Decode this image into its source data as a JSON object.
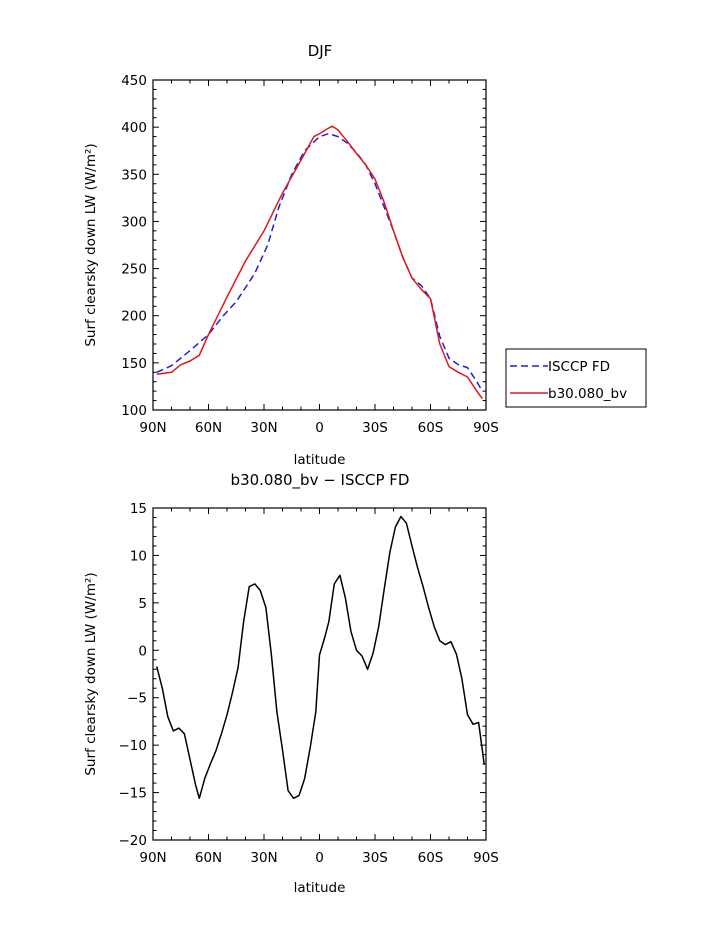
{
  "chart_data": [
    {
      "type": "line",
      "title": "DJF",
      "xlabel": "latitude",
      "ylabel": "Surf clearsky down LW (W/m²)",
      "xlim": [
        -90,
        90
      ],
      "ylim": [
        100,
        450
      ],
      "xticks": [
        -90,
        -60,
        -30,
        0,
        30,
        60,
        90
      ],
      "xtick_labels": [
        "90N",
        "60N",
        "30N",
        "0",
        "30S",
        "60S",
        "90S"
      ],
      "yticks": [
        100,
        150,
        200,
        250,
        300,
        350,
        400,
        450
      ],
      "ytick_labels": [
        "100",
        "150",
        "200",
        "250",
        "300",
        "350",
        "400",
        "450"
      ],
      "legend_position": "outside-right",
      "series": [
        {
          "name": "ISCCP FD",
          "color": "#1f1fd6",
          "style": "dashed",
          "x": [
            -88,
            -80,
            -70,
            -60,
            -52,
            -45,
            -35,
            -28,
            -22,
            -15,
            -8,
            0,
            5,
            10,
            15,
            20,
            25,
            30,
            35,
            40,
            45,
            50,
            55,
            60,
            65,
            70,
            75,
            80,
            85,
            88
          ],
          "y": [
            140,
            147,
            163,
            180,
            200,
            215,
            245,
            275,
            315,
            350,
            375,
            390,
            393,
            390,
            383,
            373,
            360,
            340,
            315,
            290,
            262,
            240,
            232,
            218,
            178,
            155,
            148,
            145,
            130,
            120
          ]
        },
        {
          "name": "b30.080_bv",
          "color": "#e0181b",
          "style": "solid",
          "x": [
            -88,
            -80,
            -75,
            -70,
            -65,
            -60,
            -50,
            -40,
            -30,
            -20,
            -10,
            -3,
            0,
            4,
            7,
            10,
            15,
            20,
            25,
            30,
            35,
            40,
            45,
            50,
            55,
            60,
            65,
            70,
            75,
            80,
            85,
            88
          ],
          "y": [
            138,
            140,
            148,
            152,
            158,
            180,
            220,
            258,
            290,
            330,
            365,
            390,
            393,
            398,
            401,
            397,
            385,
            372,
            360,
            345,
            320,
            290,
            262,
            240,
            228,
            218,
            170,
            146,
            140,
            135,
            120,
            112
          ]
        }
      ]
    },
    {
      "type": "line",
      "title": "b30.080_bv − ISCCP FD",
      "xlabel": "latitude",
      "ylabel": "Surf clearsky down LW (W/m²)",
      "xlim": [
        -90,
        90
      ],
      "ylim": [
        -20,
        15
      ],
      "xticks": [
        -90,
        -60,
        -30,
        0,
        30,
        60,
        90
      ],
      "xtick_labels": [
        "90N",
        "60N",
        "30N",
        "0",
        "30S",
        "60S",
        "90S"
      ],
      "yticks": [
        -20,
        -15,
        -10,
        -5,
        0,
        5,
        10,
        15
      ],
      "ytick_labels": [
        "−20",
        "−15",
        "−10",
        "−5",
        "0",
        "5",
        "10",
        "15"
      ],
      "series": [
        {
          "color": "#000000",
          "style": "solid",
          "x": [
            -88,
            -85,
            -82,
            -79,
            -76,
            -73,
            -70,
            -67,
            -65,
            -62,
            -59,
            -56,
            -53,
            -50,
            -47,
            -44,
            -41,
            -38,
            -35,
            -32,
            -29,
            -26,
            -23,
            -20,
            -17,
            -14,
            -11,
            -8,
            -5,
            -2,
            0,
            3,
            5,
            8,
            11,
            14,
            17,
            20,
            23,
            26,
            29,
            32,
            35,
            38,
            41,
            44,
            47,
            50,
            53,
            56,
            59,
            62,
            65,
            68,
            71,
            74,
            77,
            80,
            83,
            86,
            89
          ],
          "y": [
            -1.7,
            -4.0,
            -7.0,
            -8.5,
            -8.2,
            -8.8,
            -11.5,
            -14.2,
            -15.6,
            -13.5,
            -12.0,
            -10.6,
            -8.8,
            -6.8,
            -4.4,
            -1.8,
            3.0,
            6.7,
            7.0,
            6.3,
            4.5,
            -0.5,
            -6.5,
            -10.5,
            -14.8,
            -15.6,
            -15.3,
            -13.5,
            -10.2,
            -6.5,
            -0.5,
            1.5,
            3.0,
            7.0,
            7.9,
            5.5,
            2.0,
            0.0,
            -0.6,
            -2.0,
            -0.3,
            2.5,
            6.5,
            10.3,
            13.0,
            14.1,
            13.4,
            11.0,
            8.7,
            6.7,
            4.5,
            2.5,
            1.0,
            0.6,
            0.9,
            -0.4,
            -3.0,
            -6.8,
            -7.8,
            -7.6,
            -12.0
          ]
        }
      ]
    }
  ],
  "legend": {
    "items": [
      {
        "label": "ISCCP FD",
        "color": "#1f1fd6",
        "style": "dashed"
      },
      {
        "label": "b30.080_bv",
        "color": "#e0181b",
        "style": "solid"
      }
    ]
  }
}
